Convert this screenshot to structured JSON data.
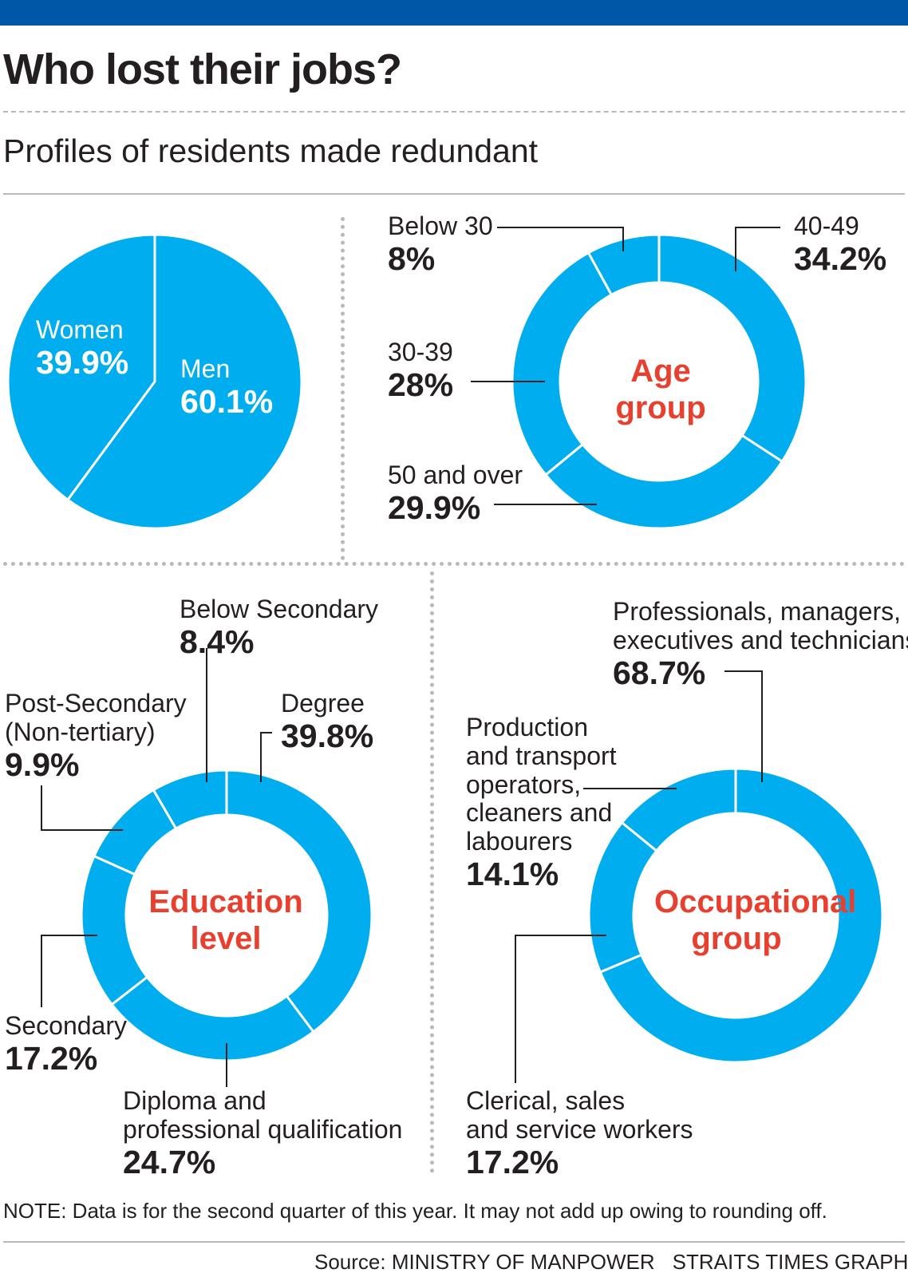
{
  "header": {
    "title": "Who lost their jobs?",
    "subtitle": "Profiles of residents made redundant"
  },
  "colors": {
    "band": "#0057a8",
    "fill": "#00aeef",
    "center_label": "#e8402e",
    "separator": "#ffffff"
  },
  "chart_data": [
    {
      "type": "pie",
      "categories": [
        "Men",
        "Women"
      ],
      "values": [
        60.1,
        39.9
      ],
      "labels": [
        "60.1%",
        "39.9%"
      ]
    },
    {
      "type": "pie",
      "style": "donut",
      "center_label": [
        "Age",
        "group"
      ],
      "categories": [
        "40-49",
        "50 and over",
        "30-39",
        "Below 30"
      ],
      "values": [
        34.2,
        29.9,
        28,
        8
      ],
      "labels": [
        "34.2%",
        "29.9%",
        "28%",
        "8%"
      ]
    },
    {
      "type": "pie",
      "style": "donut",
      "center_label": [
        "Education",
        "level"
      ],
      "categories": [
        "Degree",
        "Diploma and professional qualification",
        "Secondary",
        "Post-Secondary (Non-tertiary)",
        "Below Secondary"
      ],
      "category_lines": [
        [
          "Degree"
        ],
        [
          "Diploma and",
          "professional qualification"
        ],
        [
          "Secondary"
        ],
        [
          "Post-Secondary",
          "(Non-tertiary)"
        ],
        [
          "Below Secondary"
        ]
      ],
      "values": [
        39.8,
        24.7,
        17.2,
        9.9,
        8.4
      ],
      "labels": [
        "39.8%",
        "24.7%",
        "17.2%",
        "9.9%",
        "8.4%"
      ]
    },
    {
      "type": "pie",
      "style": "donut",
      "center_label": [
        "Occupational",
        "group"
      ],
      "categories": [
        "Professionals, managers, executives and technicians",
        "Clerical, sales and service workers",
        "Production and transport operators, cleaners and labourers"
      ],
      "category_lines": [
        [
          "Professionals, managers,",
          "executives and technicians"
        ],
        [
          "Clerical, sales",
          "and service workers"
        ],
        [
          "Production",
          "and transport",
          "operators,",
          "cleaners and",
          "labourers"
        ]
      ],
      "values": [
        68.7,
        17.2,
        14.1
      ],
      "labels": [
        "68.7%",
        "17.2%",
        "14.1%"
      ]
    }
  ],
  "footer": {
    "note": "NOTE: Data is for the second quarter of this year. It may not add up owing to rounding off.",
    "source": "Source: MINISTRY OF MANPOWER",
    "credit": "STRAITS TIMES GRAPHICS"
  }
}
